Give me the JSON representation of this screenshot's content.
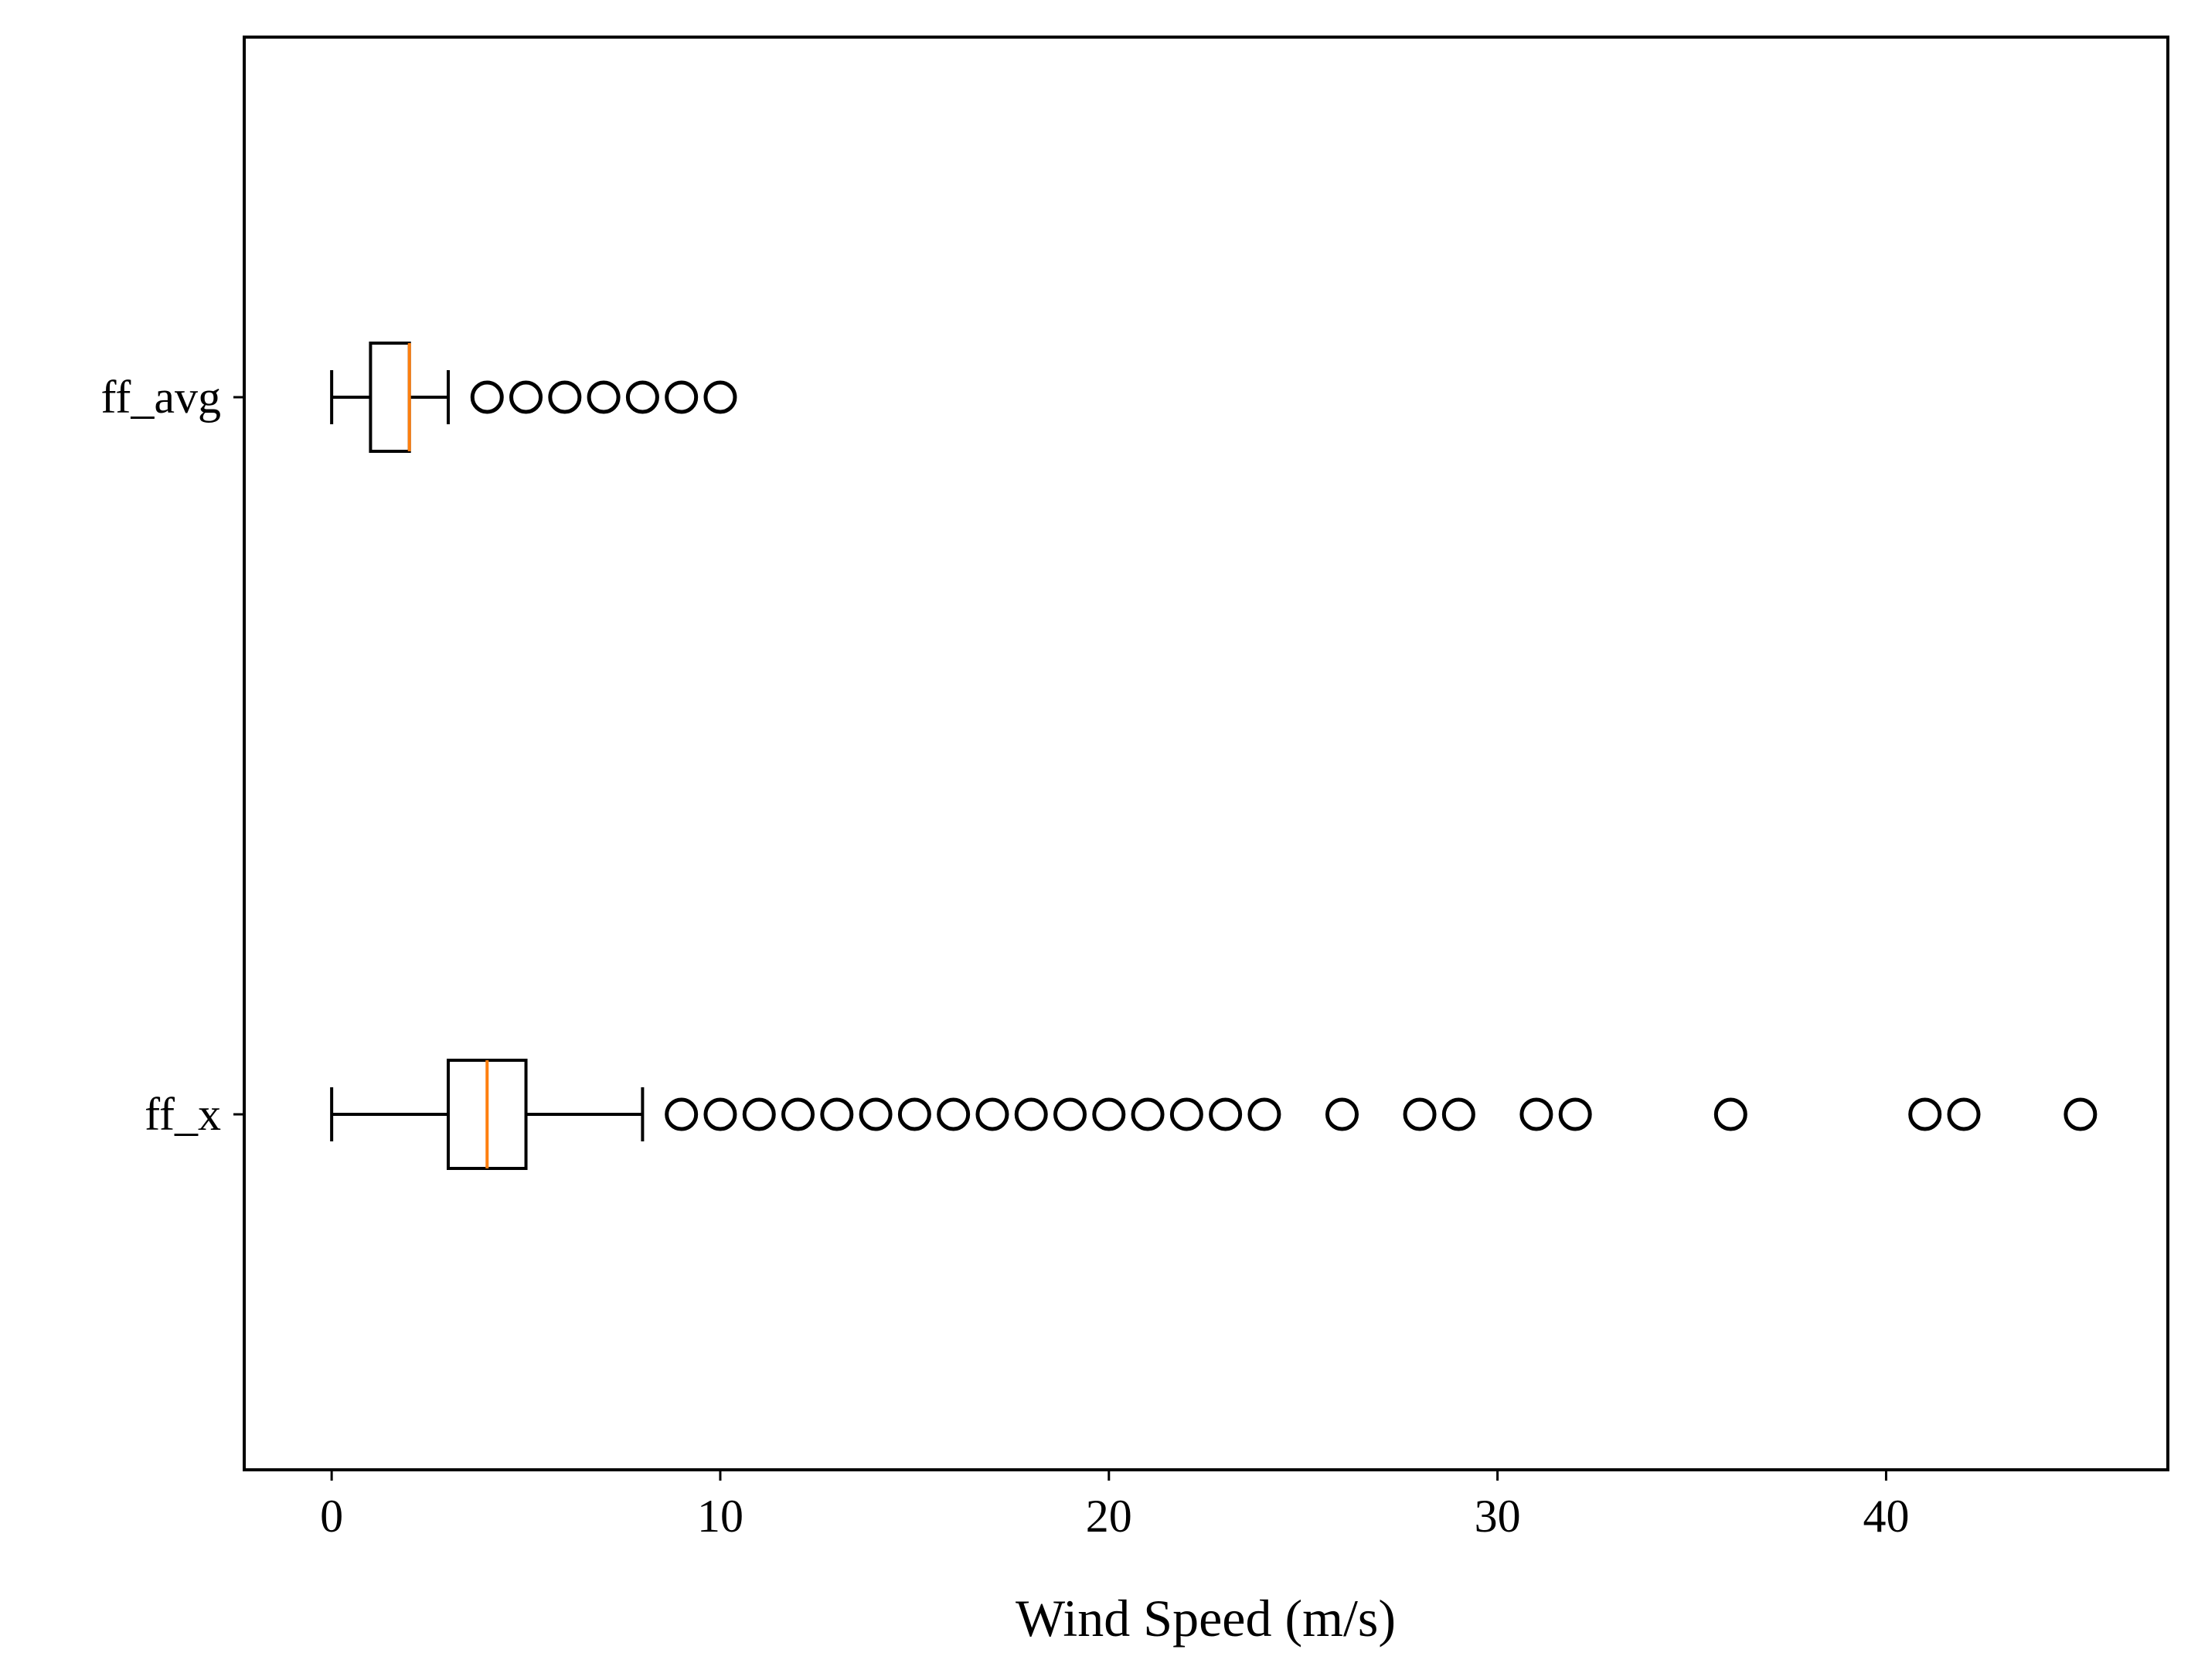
{
  "chart_data": {
    "type": "boxplot",
    "orientation": "horizontal",
    "title": "",
    "xlabel": "Wind Speed (m/s)",
    "ylabel": "",
    "xlim": [
      -2.25,
      47.25
    ],
    "xticks": [
      0,
      10,
      20,
      30,
      40
    ],
    "grid": false,
    "colors": {
      "box": "#000000",
      "median": "#ff7f0e",
      "flier": "#000000"
    },
    "series": [
      {
        "name": "ff_avg",
        "whisker_low": 0,
        "q1": 1,
        "median": 2,
        "q3": 2,
        "whisker_high": 3,
        "fliers": [
          4,
          5,
          6,
          7,
          8,
          9,
          10
        ]
      },
      {
        "name": "ff_x",
        "whisker_low": 0,
        "q1": 3,
        "median": 4,
        "q3": 5,
        "whisker_high": 8,
        "fliers": [
          9,
          10,
          11,
          12,
          13,
          14,
          15,
          16,
          17,
          18,
          19,
          20,
          21,
          22,
          23,
          24,
          26,
          28,
          29,
          31,
          32,
          36,
          41,
          42,
          45
        ]
      }
    ]
  }
}
